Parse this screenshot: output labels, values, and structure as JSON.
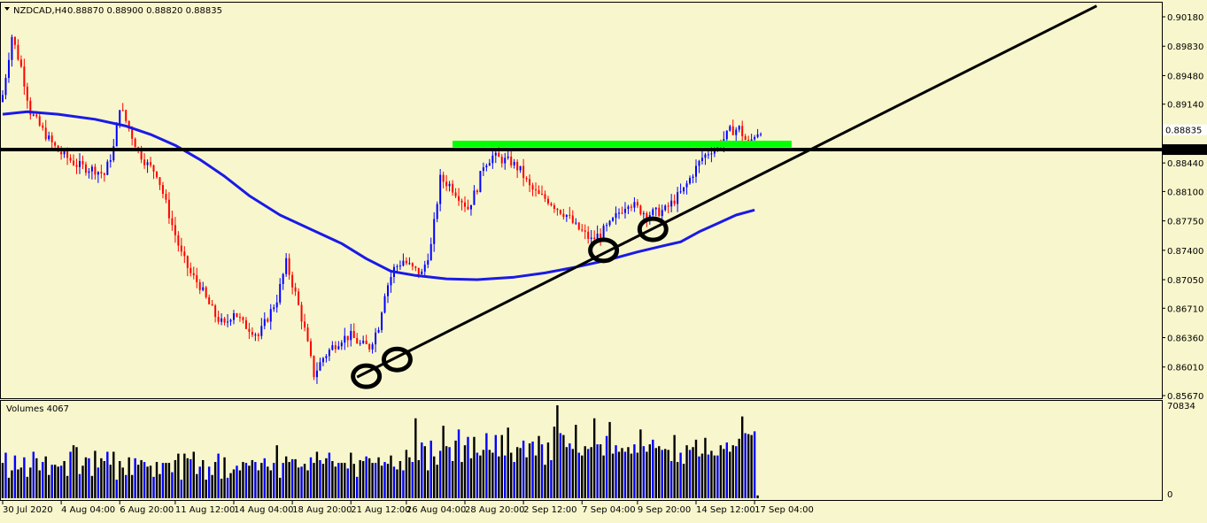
{
  "header": {
    "symbol_info": "NZDCAD,H4",
    "ohlc": "0.88870 0.88900 0.88820 0.88835"
  },
  "volume_panel": {
    "label": "Volumes 4067",
    "max_label": "70834",
    "zero_label": "0"
  },
  "colors": {
    "background": "#f8f6cc",
    "bull_candle": "#0000ff",
    "bear_candle": "#ff0000",
    "moving_average": "#1a1ae6",
    "trendline": "#000000",
    "resistance_zone": "#00ff00",
    "horizontal_level": "#000000"
  },
  "chart_data": {
    "type": "candlestick",
    "symbol": "NZDCAD",
    "timeframe": "H4",
    "y_ticks": [
      "0.90180",
      "0.89830",
      "0.89480",
      "0.89140",
      "0.88440",
      "0.88100",
      "0.87750",
      "0.87400",
      "0.87050",
      "0.86710",
      "0.86360",
      "0.86010",
      "0.85670"
    ],
    "ylim": [
      0.8567,
      0.9018
    ],
    "price_labels": {
      "current": "0.88835",
      "level": "0.88599"
    },
    "x_tick_labels": [
      "30 Jul 2020",
      "4 Aug 04:00",
      "6 Aug 20:00",
      "11 Aug 12:00",
      "14 Aug 04:00",
      "18 Aug 20:00",
      "21 Aug 12:00",
      "26 Aug 04:00",
      "28 Aug 20:00",
      "2 Sep 12:00",
      "7 Sep 04:00",
      "9 Sep 20:00",
      "14 Sep 12:00",
      "17 Sep 04:00"
    ],
    "close_path": [
      [
        0,
        0.8925
      ],
      [
        3,
        0.8995
      ],
      [
        6,
        0.8958
      ],
      [
        9,
        0.8905
      ],
      [
        12,
        0.8888
      ],
      [
        15,
        0.8872
      ],
      [
        18,
        0.8858
      ],
      [
        21,
        0.885
      ],
      [
        24,
        0.8842
      ],
      [
        27,
        0.8838
      ],
      [
        30,
        0.8836
      ],
      [
        33,
        0.883
      ],
      [
        36,
        0.8862
      ],
      [
        38,
        0.8912
      ],
      [
        41,
        0.8885
      ],
      [
        44,
        0.8858
      ],
      [
        47,
        0.8842
      ],
      [
        50,
        0.8832
      ],
      [
        52,
        0.8808
      ],
      [
        55,
        0.877
      ],
      [
        58,
        0.8735
      ],
      [
        61,
        0.8712
      ],
      [
        64,
        0.8698
      ],
      [
        66,
        0.8682
      ],
      [
        69,
        0.8662
      ],
      [
        72,
        0.865
      ],
      [
        75,
        0.8668
      ],
      [
        78,
        0.8652
      ],
      [
        81,
        0.8645
      ],
      [
        83,
        0.8638
      ],
      [
        86,
        0.866
      ],
      [
        89,
        0.8682
      ],
      [
        92,
        0.8725
      ],
      [
        95,
        0.8688
      ],
      [
        98,
        0.8645
      ],
      [
        101,
        0.8592
      ],
      [
        104,
        0.8612
      ],
      [
        107,
        0.8625
      ],
      [
        110,
        0.8635
      ],
      [
        113,
        0.8638
      ],
      [
        116,
        0.8628
      ],
      [
        119,
        0.8625
      ],
      [
        122,
        0.865
      ],
      [
        124,
        0.869
      ],
      [
        127,
        0.8718
      ],
      [
        130,
        0.8728
      ],
      [
        133,
        0.8718
      ],
      [
        136,
        0.8712
      ],
      [
        139,
        0.8745
      ],
      [
        142,
        0.8825
      ],
      [
        145,
        0.8818
      ],
      [
        148,
        0.8805
      ],
      [
        151,
        0.879
      ],
      [
        154,
        0.8815
      ],
      [
        156,
        0.8842
      ],
      [
        159,
        0.8852
      ],
      [
        162,
        0.8848
      ],
      [
        165,
        0.8845
      ],
      [
        168,
        0.8835
      ],
      [
        171,
        0.8815
      ],
      [
        174,
        0.8805
      ],
      [
        177,
        0.88
      ],
      [
        180,
        0.879
      ],
      [
        183,
        0.8782
      ],
      [
        186,
        0.8768
      ],
      [
        188,
        0.8762
      ],
      [
        191,
        0.8752
      ],
      [
        194,
        0.876
      ],
      [
        197,
        0.877
      ],
      [
        200,
        0.8785
      ],
      [
        203,
        0.8798
      ],
      [
        206,
        0.879
      ],
      [
        209,
        0.8783
      ],
      [
        212,
        0.8785
      ],
      [
        215,
        0.8788
      ],
      [
        218,
        0.88
      ],
      [
        221,
        0.8812
      ],
      [
        224,
        0.8832
      ],
      [
        227,
        0.885
      ],
      [
        230,
        0.886
      ],
      [
        233,
        0.8868
      ],
      [
        236,
        0.8882
      ],
      [
        239,
        0.8885
      ],
      [
        242,
        0.8865
      ],
      [
        244,
        0.8878
      ],
      [
        246,
        0.8884
      ]
    ],
    "moving_average": [
      [
        0,
        0.8902
      ],
      [
        8,
        0.8905
      ],
      [
        18,
        0.8902
      ],
      [
        30,
        0.8896
      ],
      [
        40,
        0.8888
      ],
      [
        48,
        0.8878
      ],
      [
        56,
        0.8865
      ],
      [
        64,
        0.8848
      ],
      [
        72,
        0.8828
      ],
      [
        80,
        0.8805
      ],
      [
        90,
        0.8782
      ],
      [
        100,
        0.8765
      ],
      [
        110,
        0.8748
      ],
      [
        118,
        0.873
      ],
      [
        126,
        0.8715
      ],
      [
        134,
        0.871
      ],
      [
        144,
        0.8706
      ],
      [
        154,
        0.8705
      ],
      [
        166,
        0.8708
      ],
      [
        176,
        0.8713
      ],
      [
        186,
        0.872
      ],
      [
        196,
        0.8728
      ],
      [
        206,
        0.8738
      ],
      [
        214,
        0.8745
      ],
      [
        220,
        0.875
      ],
      [
        226,
        0.8762
      ],
      [
        232,
        0.8772
      ],
      [
        238,
        0.8782
      ],
      [
        244,
        0.8788
      ]
    ],
    "horizontal_level": 0.88599,
    "resistance_zone": {
      "x_start": 146,
      "x_end": 256,
      "price_low": 0.88625,
      "price_high": 0.88705
    },
    "trendline": {
      "x1": 115,
      "price1": 0.8589,
      "x2": 355,
      "price2": 0.9031
    },
    "circled_lows": [
      {
        "x": 118,
        "price": 0.859
      },
      {
        "x": 128,
        "price": 0.861
      },
      {
        "x": 195,
        "price": 0.874
      },
      {
        "x": 211,
        "price": 0.8765
      }
    ],
    "volumes": [
      38,
      49,
      22,
      30,
      46,
      31,
      33,
      44,
      23,
      33,
      50,
      43,
      30,
      39,
      45,
      25,
      36,
      36,
      34,
      35,
      40,
      24,
      50,
      57,
      55,
      26,
      35,
      44,
      43,
      24,
      51,
      33,
      43,
      40,
      50,
      36,
      50,
      20,
      40,
      33,
      25,
      44,
      25,
      43,
      36,
      41,
      39,
      34,
      35,
      23,
      39,
      26,
      38,
      38,
      38,
      28,
      41,
      48,
      20,
      48,
      43,
      42,
      50,
      26,
      34,
      41,
      20,
      34,
      25,
      39,
      48,
      21,
      44,
      22,
      27,
      31,
      35,
      30,
      39,
      38,
      35,
      41,
      39,
      30,
      38,
      43,
      34,
      30,
      38,
      57,
      22,
      38,
      45,
      39,
      42,
      42,
      33,
      34,
      37,
      30,
      44,
      38,
      50,
      41,
      37,
      43,
      49,
      40,
      34,
      38,
      38,
      38,
      32,
      49,
      37,
      23,
      41,
      40,
      45,
      43,
      38,
      38,
      44,
      35,
      39,
      37,
      46,
      34,
      31,
      40,
      30,
      52,
      44,
      39,
      86,
      41,
      60,
      56,
      30,
      62,
      45,
      36,
      51,
      78,
      56,
      55,
      40,
      62,
      74,
      39,
      57,
      66,
      43,
      66,
      49,
      46,
      52,
      70,
      52,
      49,
      68,
      45,
      68,
      46,
      76,
      49,
      39,
      55,
      54,
      62,
      44,
      59,
      61,
      46,
      67,
      58,
      36,
      60,
      41,
      77,
      100,
      70,
      68,
      55,
      59,
      53,
      79,
      49,
      46,
      56,
      53,
      55,
      86,
      58,
      58,
      46,
      67,
      82,
      48,
      57,
      50,
      54,
      50,
      55,
      48,
      58,
      49,
      74,
      56,
      50,
      58,
      63,
      54,
      56,
      52,
      53,
      52,
      40,
      68,
      39,
      49,
      37,
      57,
      52,
      55,
      63,
      45,
      48,
      65,
      47,
      51,
      46,
      46,
      57,
      53,
      60,
      50,
      57,
      56,
      64,
      88,
      70,
      69,
      68,
      72,
      3
    ]
  }
}
